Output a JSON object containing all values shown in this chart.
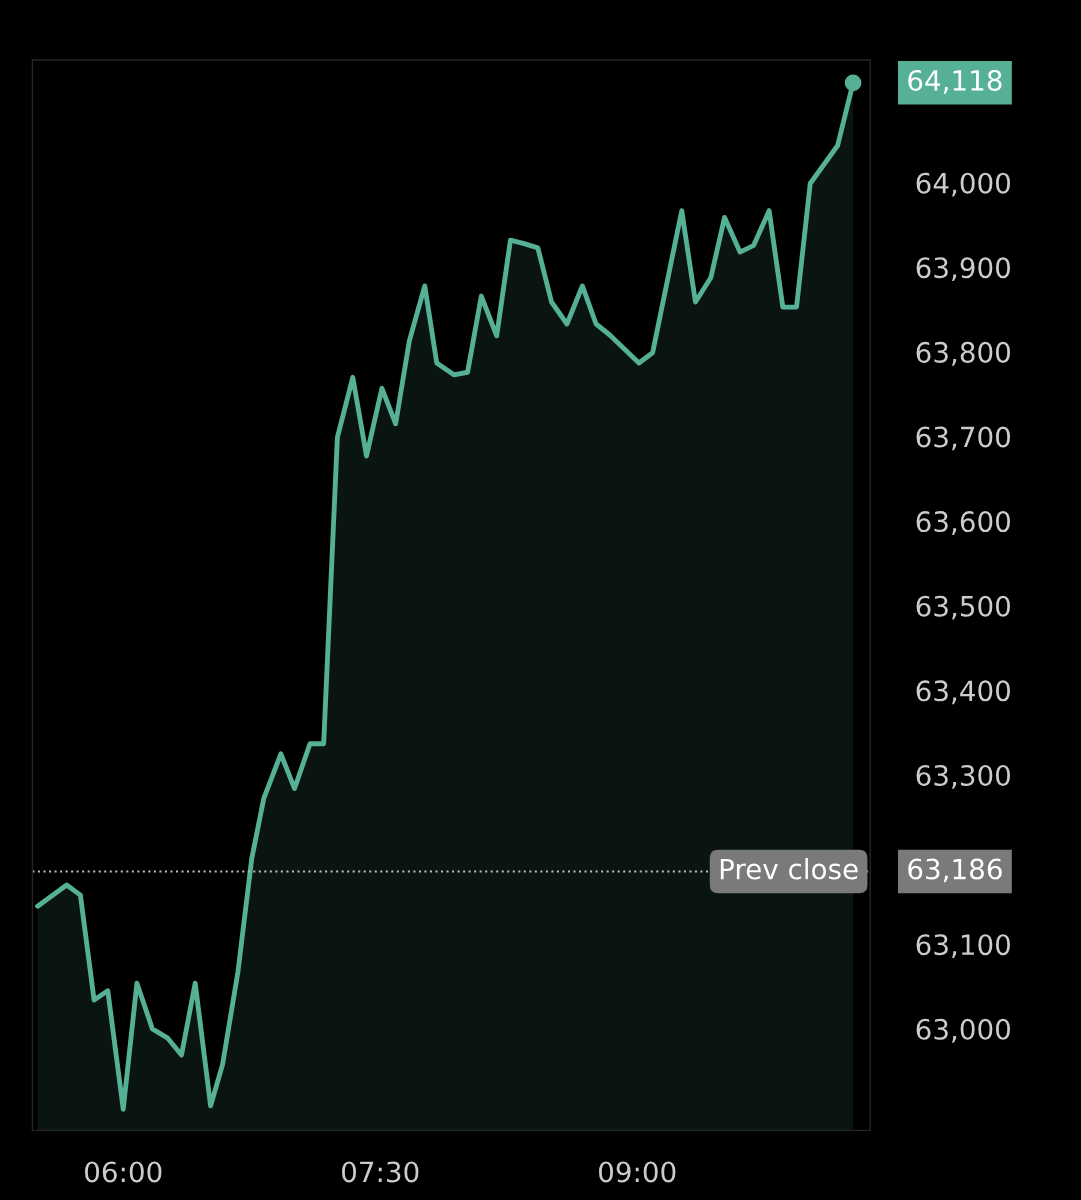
{
  "chart_data": {
    "type": "area",
    "x": [
      5.5,
      5.67,
      5.75,
      5.83,
      5.91,
      6.0,
      6.08,
      6.17,
      6.26,
      6.34,
      6.42,
      6.51,
      6.58,
      6.67,
      6.75,
      6.82,
      6.92,
      7.0,
      7.09,
      7.17,
      7.25,
      7.34,
      7.42,
      7.51,
      7.59,
      7.67,
      7.76,
      7.83,
      7.93,
      8.01,
      8.09,
      8.18,
      8.26,
      8.34,
      8.42,
      8.5,
      8.59,
      8.68,
      8.76,
      8.84,
      9.01,
      9.09,
      9.26,
      9.34,
      9.43,
      9.51,
      9.6,
      9.68,
      9.77,
      9.85,
      9.93,
      10.01,
      10.17,
      10.26
    ],
    "series": [
      {
        "color": "#55b095",
        "values": [
          63145,
          63170,
          63158,
          63034,
          63045,
          62905,
          63054,
          63000,
          62989,
          62969,
          63054,
          62909,
          62958,
          63068,
          63201,
          63272,
          63325,
          63284,
          63337,
          63337,
          63699,
          63770,
          63677,
          63757,
          63715,
          63813,
          63878,
          63787,
          63773,
          63776,
          63866,
          63819,
          63932,
          63928,
          63923,
          63859,
          63833,
          63878,
          63833,
          63820,
          63787,
          63799,
          63967,
          63859,
          63888,
          63959,
          63918,
          63926,
          63967,
          63853,
          63853,
          63999,
          64044,
          64118
        ]
      }
    ],
    "xlim": [
      5.47,
      10.36
    ],
    "ylim": [
      62880,
      64145
    ],
    "xticks": [
      {
        "value": 6,
        "label": "06:00"
      },
      {
        "value": 7.5,
        "label": "07:30"
      },
      {
        "value": 9,
        "label": "09:00"
      }
    ],
    "yticks": [
      {
        "value": 63000,
        "label": "63,000"
      },
      {
        "value": 63100,
        "label": "63,100"
      },
      {
        "value": 63300,
        "label": "63,300"
      },
      {
        "value": 63400,
        "label": "63,400"
      },
      {
        "value": 63500,
        "label": "63,500"
      },
      {
        "value": 63600,
        "label": "63,600"
      },
      {
        "value": 63700,
        "label": "63,700"
      },
      {
        "value": 63800,
        "label": "63,800"
      },
      {
        "value": 63900,
        "label": "63,900"
      },
      {
        "value": 64000,
        "label": "64,000"
      }
    ],
    "ref_lines": [
      {
        "axis": "y",
        "value": 63186,
        "label": "Prev close",
        "color": "#bbbbbb",
        "line_style": "dotted"
      }
    ],
    "annotations": [
      {
        "text": "64,118",
        "x": 10.26,
        "y": 64118
      },
      "63,186"
    ],
    "grid": false,
    "marker": "none",
    "line_style": "solid"
  }
}
